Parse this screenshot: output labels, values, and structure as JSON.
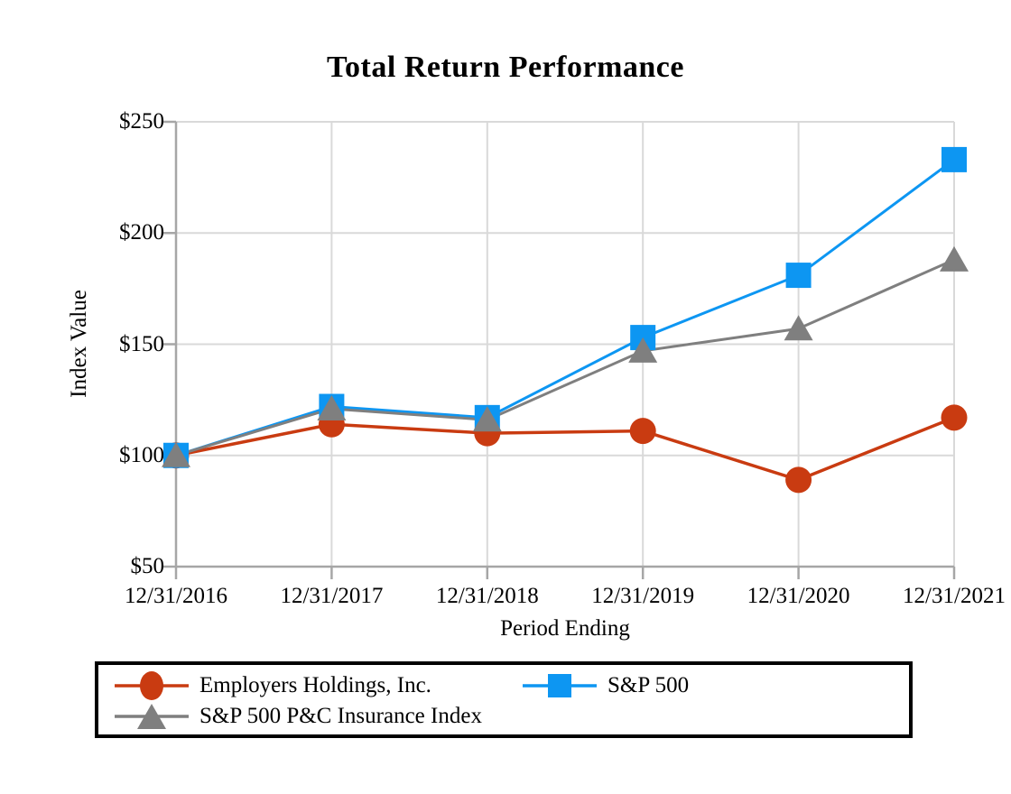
{
  "page": {
    "background": "#FFFFFF"
  },
  "chart_data": {
    "type": "line",
    "title": "Total Return Performance",
    "xlabel": "Period Ending",
    "ylabel": "Index Value",
    "categories": [
      "12/31/2016",
      "12/31/2017",
      "12/31/2018",
      "12/31/2019",
      "12/31/2020",
      "12/31/2021"
    ],
    "series": [
      {
        "name": "Employers Holdings, Inc.",
        "marker": "circle",
        "color": "#C93B11",
        "values": [
          100,
          114,
          110,
          111,
          89,
          117
        ]
      },
      {
        "name": "S&P 500",
        "marker": "square",
        "color": "#0D96F2",
        "values": [
          100,
          122,
          117,
          153,
          181,
          233
        ]
      },
      {
        "name": "S&P 500 P&C Insurance Index",
        "marker": "triangle",
        "color": "#7F7F7F",
        "values": [
          100,
          121,
          116,
          147,
          157,
          188
        ]
      }
    ],
    "ylim": [
      50,
      250
    ],
    "yticks": [
      {
        "value": 50,
        "label": "$50"
      },
      {
        "value": 100,
        "label": "$100"
      },
      {
        "value": 150,
        "label": "$150"
      },
      {
        "value": 200,
        "label": "$200"
      },
      {
        "value": 250,
        "label": "$250"
      }
    ],
    "grid": true,
    "legend_position": "bottom"
  },
  "colors": {
    "gridline": "#D9D9D9",
    "axis": "#A6A6A6",
    "text": "#000000",
    "legend_border": "#000000"
  }
}
